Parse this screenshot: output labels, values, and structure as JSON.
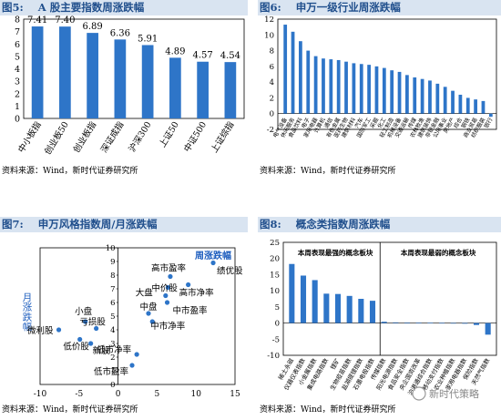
{
  "chart_data": [
    {
      "type": "bar",
      "figure_label": "图5:",
      "title": "A 股主要指数周涨跌幅",
      "categories": [
        "中小板指",
        "创业板50",
        "创业板指",
        "深证成指",
        "沪深300",
        "上证50",
        "中证500",
        "上证综指"
      ],
      "values": [
        7.41,
        7.4,
        6.89,
        6.36,
        5.91,
        4.89,
        4.57,
        4.54
      ],
      "data_labels": [
        "7.41",
        "7.40",
        "6.89",
        "6.36",
        "5.91",
        "4.89",
        "4.57",
        "4.54"
      ],
      "ylim": [
        0,
        8
      ],
      "yticks": [
        "0",
        "1",
        "2",
        "3",
        "4",
        "5",
        "6",
        "7",
        "8"
      ],
      "bar_color": "#2e75c8",
      "source": "资料来源：Wind，新时代证券研究所"
    },
    {
      "type": "bar",
      "figure_label": "图6:",
      "title": "申万一级行业周涨跌幅",
      "categories": [
        "电气设备",
        "休闲服务",
        "食品饮料",
        "电子",
        "家用电器",
        "计算机",
        "通信",
        "有色金属",
        "医药生物",
        "建筑材料",
        "汽车",
        "国防军工",
        "采掘",
        "化工",
        "轻工制造",
        "机械设备",
        "交通运输",
        "传媒",
        "农林牧渔",
        "建筑装饰",
        "非银金融",
        "公用事业",
        "房地产",
        "综合",
        "钢铁",
        "商业贸易",
        "纺织服装",
        "银行"
      ],
      "values": [
        11.3,
        10.4,
        9.2,
        8.0,
        7.3,
        7.0,
        6.9,
        6.8,
        6.6,
        6.4,
        6.3,
        6.2,
        6.0,
        5.8,
        5.5,
        5.3,
        4.9,
        4.6,
        4.4,
        4.2,
        3.8,
        3.4,
        2.9,
        2.4,
        2.0,
        1.8,
        1.6,
        -0.4
      ],
      "ylim": [
        -2,
        12
      ],
      "yticks": [
        "-2",
        "0",
        "2",
        "4",
        "6",
        "8",
        "10",
        "12"
      ],
      "bar_color": "#2e75c8",
      "source": "资料来源：Wind，新时代证券研究所"
    },
    {
      "type": "scatter",
      "figure_label": "图7:",
      "title": "申万风格指数周/月涨跌幅",
      "xlabel": "周涨跌幅",
      "ylabel": "月涨跌幅",
      "xlim": [
        -10,
        15
      ],
      "ylim": [
        0,
        10
      ],
      "xticks": [
        "-10",
        "-5",
        "0",
        "5",
        "10",
        "15"
      ],
      "yticks": [
        "0",
        "1",
        "2",
        "3",
        "4",
        "5",
        "6",
        "7",
        "8",
        "9",
        "10"
      ],
      "points": [
        {
          "name": "绩优股",
          "x": 12.2,
          "y": 8.9
        },
        {
          "name": "高市盈率",
          "x": 6.7,
          "y": 7.9
        },
        {
          "name": "高市净率",
          "x": 9.0,
          "y": 7.3
        },
        {
          "name": "中价股",
          "x": 6.4,
          "y": 7.1
        },
        {
          "name": "大盘",
          "x": 6.1,
          "y": 6.5
        },
        {
          "name": "中市盈率",
          "x": 6.3,
          "y": 6.0
        },
        {
          "name": "中盘",
          "x": 3.9,
          "y": 5.2
        },
        {
          "name": "中市净率",
          "x": 4.4,
          "y": 4.6
        },
        {
          "name": "低市净率",
          "x": 2.4,
          "y": 2.2
        },
        {
          "name": "低市盈率",
          "x": 1.8,
          "y": 1.4
        },
        {
          "name": "小盘",
          "x": -4.2,
          "y": 4.6
        },
        {
          "name": "亏损股",
          "x": -2.8,
          "y": 4.1
        },
        {
          "name": "微利股",
          "x": -7.6,
          "y": 4.0
        },
        {
          "name": "低价股",
          "x": -4.9,
          "y": 3.3
        },
        {
          "name": "新股",
          "x": -3.5,
          "y": 3.0
        }
      ],
      "point_color": "#2e75c8",
      "source": "资料来源：Wind，新时代证券研究所"
    },
    {
      "type": "bar",
      "figure_label": "图8:",
      "title": "概念类指数周涨跌幅",
      "group_labels": [
        "本周表现最强的概念板块",
        "本周表现最弱的概念板块"
      ],
      "categories": [
        "稀土永磁",
        "仪器仪表指数",
        "小金属指数",
        "集成电路指数",
        "锂矿",
        "生物疫苗指数",
        "盐湖提锂指数",
        "石墨电极指数",
        "传媒指数",
        "阳光电源指数",
        "食品安全指数",
        "央企国资改革",
        "沪港通综合指数",
        "移动支付指数",
        "农业种植指数",
        "家用电器指数",
        "保险指数",
        "天然气指数"
      ],
      "values": [
        18.3,
        14.7,
        13.3,
        9.1,
        9.0,
        8.4,
        7.5,
        6.9,
        0.4,
        0.2,
        0.15,
        0.1,
        0.05,
        0.02,
        -0.1,
        -0.2,
        -0.6,
        -3.6
      ],
      "ylim": [
        -10,
        25
      ],
      "yticks": [
        "-10",
        "-5",
        "0",
        "5",
        "10",
        "15",
        "20",
        "25"
      ],
      "bar_color": "#2e75c8",
      "source": "资料来源：Wind，新时代证券研究所",
      "watermark": "新时代策略"
    }
  ]
}
